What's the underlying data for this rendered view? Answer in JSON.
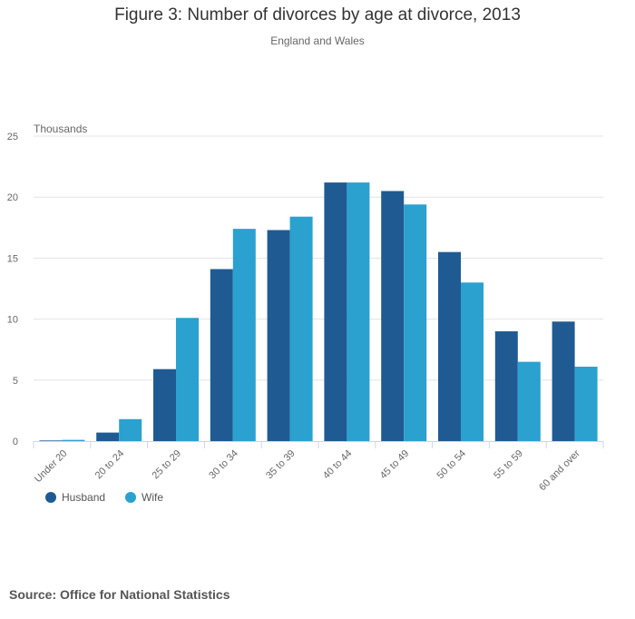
{
  "title": "Figure 3: Number of divorces by age at divorce, 2013",
  "subtitle": "England and Wales",
  "source": "Source: Office for National Statistics",
  "chart_data": {
    "type": "bar",
    "title": "Figure 3: Number of divorces by age at divorce, 2013",
    "subtitle": "England and Wales",
    "ylabel": "Thousands",
    "xlabel": "",
    "ylim": [
      0,
      25
    ],
    "yticks": [
      0,
      5,
      10,
      15,
      20,
      25
    ],
    "grid": true,
    "legend_position": "bottom-left",
    "categories": [
      "Under 20",
      "20 to 24",
      "25 to 29",
      "30 to 34",
      "35 to 39",
      "40 to 44",
      "45 to 49",
      "50 to 54",
      "55 to 59",
      "60 and over"
    ],
    "series": [
      {
        "name": "Husband",
        "color": "#1f5b92",
        "values": [
          0.05,
          0.7,
          5.9,
          14.1,
          17.3,
          21.2,
          20.5,
          15.5,
          9.0,
          9.8
        ]
      },
      {
        "name": "Wife",
        "color": "#2aa1cf",
        "values": [
          0.1,
          1.8,
          10.1,
          17.4,
          18.4,
          21.2,
          19.4,
          13.0,
          6.5,
          6.1
        ]
      }
    ]
  }
}
